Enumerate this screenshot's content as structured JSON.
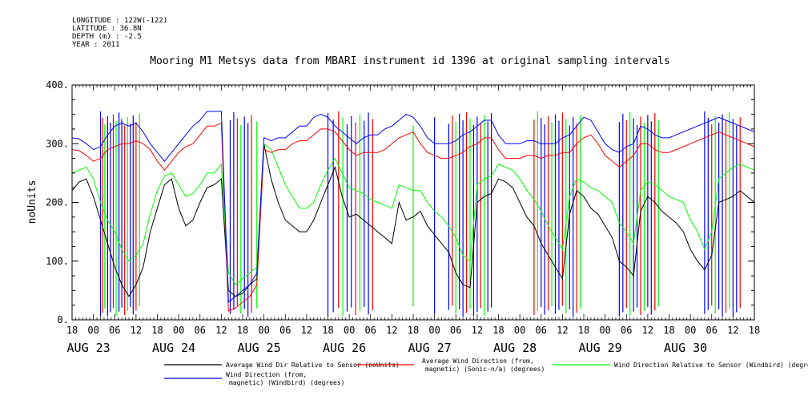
{
  "header": {
    "longitude": "LONGITUDE : 122W(-122)",
    "latitude": "LATITUDE : 36.8N",
    "depth": "DEPTH (m) : -2.5",
    "year": "YEAR : 2011"
  },
  "chart_data": {
    "type": "line",
    "title": "Mooring M1 Metsys data from MBARI instrument id 1396 at original sampling intervals",
    "ylabel": "noUnits",
    "xlabel": "",
    "ylim": [
      0,
      400
    ],
    "y_ticks": [
      "0.",
      "100.",
      "200.",
      "300.",
      "400."
    ],
    "x_hour_ticks": [
      "18",
      "00",
      "06",
      "12",
      "18",
      "00",
      "06",
      "12",
      "18",
      "00",
      "06",
      "12",
      "18",
      "00",
      "06",
      "12",
      "18",
      "00",
      "06",
      "12",
      "18",
      "00",
      "06",
      "12",
      "18",
      "00",
      "06",
      "12",
      "18",
      "00",
      "06",
      "12",
      "18"
    ],
    "x_date_labels": [
      "AUG 23",
      "AUG 24",
      "AUG 25",
      "AUG 26",
      "AUG 27",
      "AUG 28",
      "AUG 29",
      "AUG 30"
    ],
    "x_unit": "hours since AUG 22 18:00",
    "x_range": [
      0,
      192
    ],
    "grid": false,
    "legend_position": "bottom",
    "series": [
      {
        "name": "Average Wind Dir Relative to Sensor (noUnits)",
        "color": "#000000",
        "x": [
          0,
          2,
          4,
          6,
          8,
          10,
          12,
          14,
          16,
          18,
          20,
          22,
          24,
          26,
          28,
          30,
          32,
          34,
          36,
          38,
          40,
          42,
          44,
          46,
          48,
          50,
          52,
          54,
          56,
          58,
          60,
          62,
          64,
          66,
          68,
          70,
          72,
          74,
          76,
          78,
          80,
          82,
          84,
          86,
          88,
          90,
          92,
          94,
          96,
          98,
          100,
          102,
          104,
          106,
          108,
          110,
          112,
          114,
          116,
          118,
          120,
          122,
          124,
          126,
          128,
          130,
          132,
          134,
          136,
          138,
          140,
          142,
          144,
          146,
          148,
          150,
          152,
          154,
          156,
          158,
          160,
          162,
          164,
          166,
          168,
          170,
          172,
          174,
          176,
          178,
          180,
          182,
          184,
          186,
          188,
          190,
          192
        ],
        "y": [
          220,
          235,
          240,
          210,
          170,
          130,
          90,
          60,
          40,
          60,
          90,
          150,
          190,
          230,
          240,
          190,
          160,
          170,
          200,
          225,
          230,
          240,
          50,
          40,
          45,
          60,
          70,
          300,
          240,
          200,
          170,
          160,
          150,
          150,
          170,
          200,
          230,
          260,
          210,
          175,
          180,
          170,
          160,
          150,
          140,
          130,
          200,
          170,
          175,
          185,
          160,
          145,
          130,
          115,
          80,
          60,
          55,
          200,
          210,
          215,
          240,
          235,
          225,
          200,
          175,
          160,
          130,
          110,
          90,
          70,
          180,
          220,
          210,
          190,
          180,
          160,
          140,
          100,
          90,
          75,
          185,
          210,
          200,
          185,
          175,
          165,
          150,
          120,
          100,
          85,
          110,
          200,
          205,
          210,
          220,
          210,
          200
        ]
      },
      {
        "name": "Average Wind Direction (from, magnetic) (Sonic-n/a) (degrees)",
        "color": "#ff0000",
        "x": [
          0,
          2,
          4,
          6,
          8,
          10,
          12,
          14,
          16,
          18,
          20,
          22,
          24,
          26,
          28,
          30,
          32,
          34,
          36,
          38,
          40,
          42,
          44,
          46,
          48,
          50,
          52,
          54,
          56,
          58,
          60,
          62,
          64,
          66,
          68,
          70,
          72,
          74,
          76,
          78,
          80,
          82,
          84,
          86,
          88,
          90,
          92,
          94,
          96,
          98,
          100,
          102,
          104,
          106,
          108,
          110,
          112,
          114,
          116,
          118,
          120,
          122,
          124,
          126,
          128,
          130,
          132,
          134,
          136,
          138,
          140,
          142,
          144,
          146,
          148,
          150,
          152,
          154,
          156,
          158,
          160,
          162,
          164,
          166,
          168,
          170,
          172,
          174,
          176,
          178,
          180,
          182,
          184,
          186,
          188,
          190,
          192
        ],
        "y": [
          290,
          288,
          280,
          270,
          275,
          290,
          295,
          300,
          300,
          305,
          300,
          290,
          270,
          255,
          270,
          285,
          295,
          300,
          315,
          330,
          330,
          335,
          15,
          20,
          30,
          40,
          60,
          290,
          285,
          290,
          290,
          300,
          305,
          305,
          315,
          325,
          325,
          320,
          305,
          290,
          280,
          285,
          285,
          285,
          290,
          300,
          310,
          315,
          320,
          300,
          285,
          280,
          275,
          275,
          280,
          285,
          295,
          300,
          310,
          310,
          290,
          275,
          275,
          275,
          280,
          280,
          275,
          280,
          280,
          285,
          285,
          300,
          310,
          315,
          300,
          280,
          270,
          260,
          270,
          280,
          300,
          300,
          290,
          285,
          285,
          290,
          295,
          300,
          305,
          310,
          315,
          320,
          315,
          310,
          305,
          300,
          295
        ]
      },
      {
        "name": "Wind Direction Relative to Sensor (Windbird) (degrees)",
        "color": "#00ff00",
        "x": [
          0,
          2,
          4,
          6,
          8,
          10,
          12,
          14,
          16,
          18,
          20,
          22,
          24,
          26,
          28,
          30,
          32,
          34,
          36,
          38,
          40,
          42,
          44,
          46,
          48,
          50,
          52,
          54,
          56,
          58,
          60,
          62,
          64,
          66,
          68,
          70,
          72,
          74,
          76,
          78,
          80,
          82,
          84,
          86,
          88,
          90,
          92,
          94,
          96,
          98,
          100,
          102,
          104,
          106,
          108,
          110,
          112,
          114,
          116,
          118,
          120,
          122,
          124,
          126,
          128,
          130,
          132,
          134,
          136,
          138,
          140,
          142,
          144,
          146,
          148,
          150,
          152,
          154,
          156,
          158,
          160,
          162,
          164,
          166,
          168,
          170,
          172,
          174,
          176,
          178,
          180,
          182,
          184,
          186,
          188,
          190,
          192
        ],
        "y": [
          250,
          255,
          260,
          240,
          200,
          170,
          150,
          120,
          100,
          110,
          130,
          180,
          220,
          245,
          250,
          230,
          210,
          215,
          230,
          250,
          250,
          265,
          80,
          60,
          70,
          80,
          90,
          300,
          290,
          260,
          230,
          210,
          190,
          190,
          200,
          230,
          255,
          275,
          250,
          225,
          220,
          215,
          205,
          200,
          195,
          190,
          230,
          225,
          220,
          220,
          200,
          185,
          175,
          160,
          140,
          110,
          100,
          230,
          240,
          245,
          265,
          260,
          255,
          240,
          220,
          205,
          185,
          160,
          140,
          120,
          210,
          240,
          235,
          225,
          220,
          210,
          200,
          165,
          150,
          130,
          220,
          235,
          230,
          220,
          210,
          205,
          200,
          170,
          150,
          120,
          150,
          240,
          250,
          260,
          265,
          260,
          255
        ]
      },
      {
        "name": "Wind Direction (from, magnetic) (Windbird) (degrees)",
        "color": "#0000ff",
        "x": [
          0,
          2,
          4,
          6,
          8,
          10,
          12,
          14,
          16,
          18,
          20,
          22,
          24,
          26,
          28,
          30,
          32,
          34,
          36,
          38,
          40,
          42,
          44,
          46,
          48,
          50,
          52,
          54,
          56,
          58,
          60,
          62,
          64,
          66,
          68,
          70,
          72,
          74,
          76,
          78,
          80,
          82,
          84,
          86,
          88,
          90,
          92,
          94,
          96,
          98,
          100,
          102,
          104,
          106,
          108,
          110,
          112,
          114,
          116,
          118,
          120,
          122,
          124,
          126,
          128,
          130,
          132,
          134,
          136,
          138,
          140,
          142,
          144,
          146,
          148,
          150,
          152,
          154,
          156,
          158,
          160,
          162,
          164,
          166,
          168,
          170,
          172,
          174,
          176,
          178,
          180,
          182,
          184,
          186,
          188,
          190,
          192
        ],
        "y": [
          310,
          308,
          300,
          290,
          295,
          315,
          330,
          335,
          330,
          335,
          320,
          300,
          285,
          270,
          285,
          300,
          315,
          330,
          340,
          355,
          355,
          355,
          30,
          40,
          50,
          60,
          80,
          310,
          305,
          310,
          310,
          320,
          330,
          330,
          345,
          350,
          345,
          330,
          320,
          310,
          300,
          310,
          315,
          315,
          325,
          330,
          340,
          350,
          345,
          330,
          310,
          300,
          300,
          300,
          305,
          315,
          320,
          330,
          340,
          340,
          315,
          300,
          300,
          300,
          305,
          305,
          300,
          300,
          300,
          310,
          315,
          330,
          345,
          340,
          320,
          300,
          290,
          285,
          295,
          300,
          330,
          325,
          315,
          310,
          310,
          315,
          320,
          325,
          330,
          335,
          340,
          345,
          340,
          335,
          330,
          325,
          320
        ]
      }
    ],
    "spikes": {
      "description": "vertical excursions between 0 and 355",
      "x": [
        8,
        8.6,
        9.2,
        10,
        10.8,
        11.6,
        12.4,
        13.2,
        14,
        14.8,
        15.6,
        16.4,
        17.2,
        18,
        19,
        44.5,
        45.5,
        46.5,
        47.5,
        48.5,
        49.5,
        50.5,
        52,
        72,
        73.5,
        75,
        76.2,
        77.4,
        78.6,
        79.8,
        81,
        82.2,
        83.4,
        84.6,
        96,
        102,
        106,
        107,
        108,
        109,
        110,
        111,
        112,
        113,
        114,
        115,
        116,
        117,
        118,
        130,
        131,
        132,
        133,
        134,
        135,
        136,
        137,
        138,
        139,
        140,
        141,
        142,
        143,
        154,
        155,
        156,
        157,
        158,
        159,
        160,
        161,
        162,
        163,
        164,
        165,
        178,
        179,
        180,
        181,
        182,
        183,
        184,
        185,
        186,
        187,
        188
      ],
      "colors": [
        "#0000ff",
        "#ff0000",
        "#00ff00",
        "#0000ff"
      ]
    }
  },
  "legend": [
    {
      "label_line1": "Average Wind Dir Relative to Sensor (noUnits)",
      "label_line2": "",
      "color": "#000000"
    },
    {
      "label_line1": "Average Wind Direction (from,",
      "label_line2": "magnetic) (Sonic-n/a) (degrees)",
      "color": "#ff0000"
    },
    {
      "label_line1": "Wind Direction Relative to Sensor (Windbird) (degrees)",
      "label_line2": "",
      "color": "#00ff00"
    },
    {
      "label_line1": "Wind Direction (from,",
      "label_line2": "magnetic) (Windbird) (degrees)",
      "color": "#0000ff"
    }
  ]
}
